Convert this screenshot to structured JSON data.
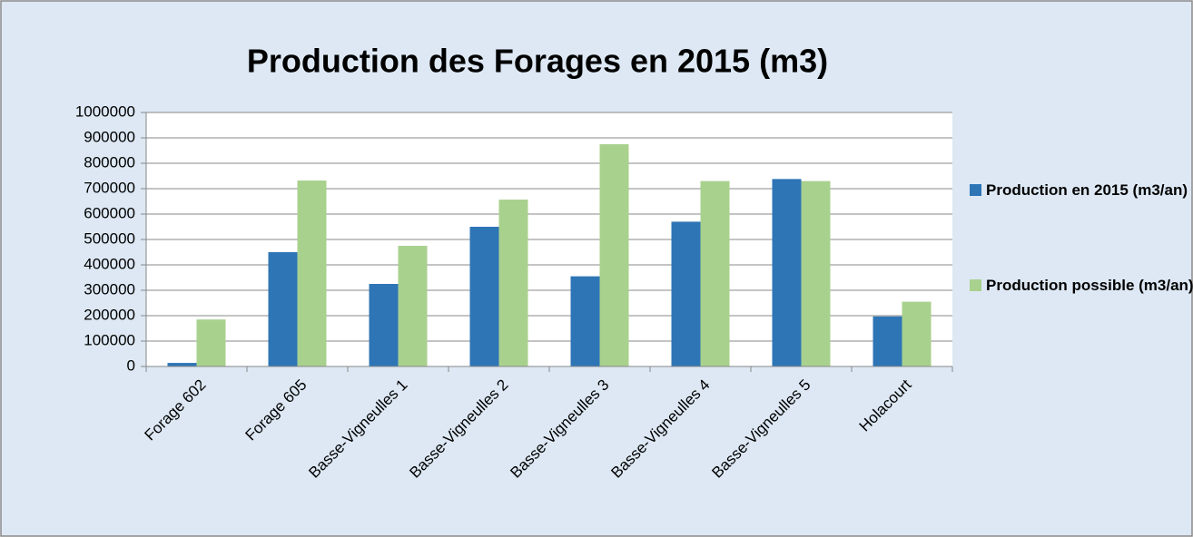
{
  "chart_data": {
    "type": "bar",
    "title": "Production des Forages en 2015 (m3)",
    "categories": [
      "Forage 602",
      "Forage 605",
      "Basse-Vigneulles 1",
      "Basse-Vigneulles 2",
      "Basse-Vigneulles 3",
      "Basse-Vigneulles 4",
      "Basse-Vigneulles 5",
      "Holacourt"
    ],
    "series": [
      {
        "name": "Production en 2015 (m3/an)",
        "color": "#2e75b6",
        "values": [
          14000,
          450000,
          325000,
          550000,
          355000,
          570000,
          738000,
          197000
        ]
      },
      {
        "name": "Production possible (m3/an)",
        "color": "#a9d18e",
        "values": [
          185000,
          732000,
          475000,
          657000,
          875000,
          730000,
          730000,
          255000
        ]
      }
    ],
    "ylim": [
      0,
      1000000
    ],
    "yticks": [
      0,
      100000,
      200000,
      300000,
      400000,
      500000,
      600000,
      700000,
      800000,
      900000,
      1000000
    ],
    "grid": true,
    "legend": "right"
  }
}
